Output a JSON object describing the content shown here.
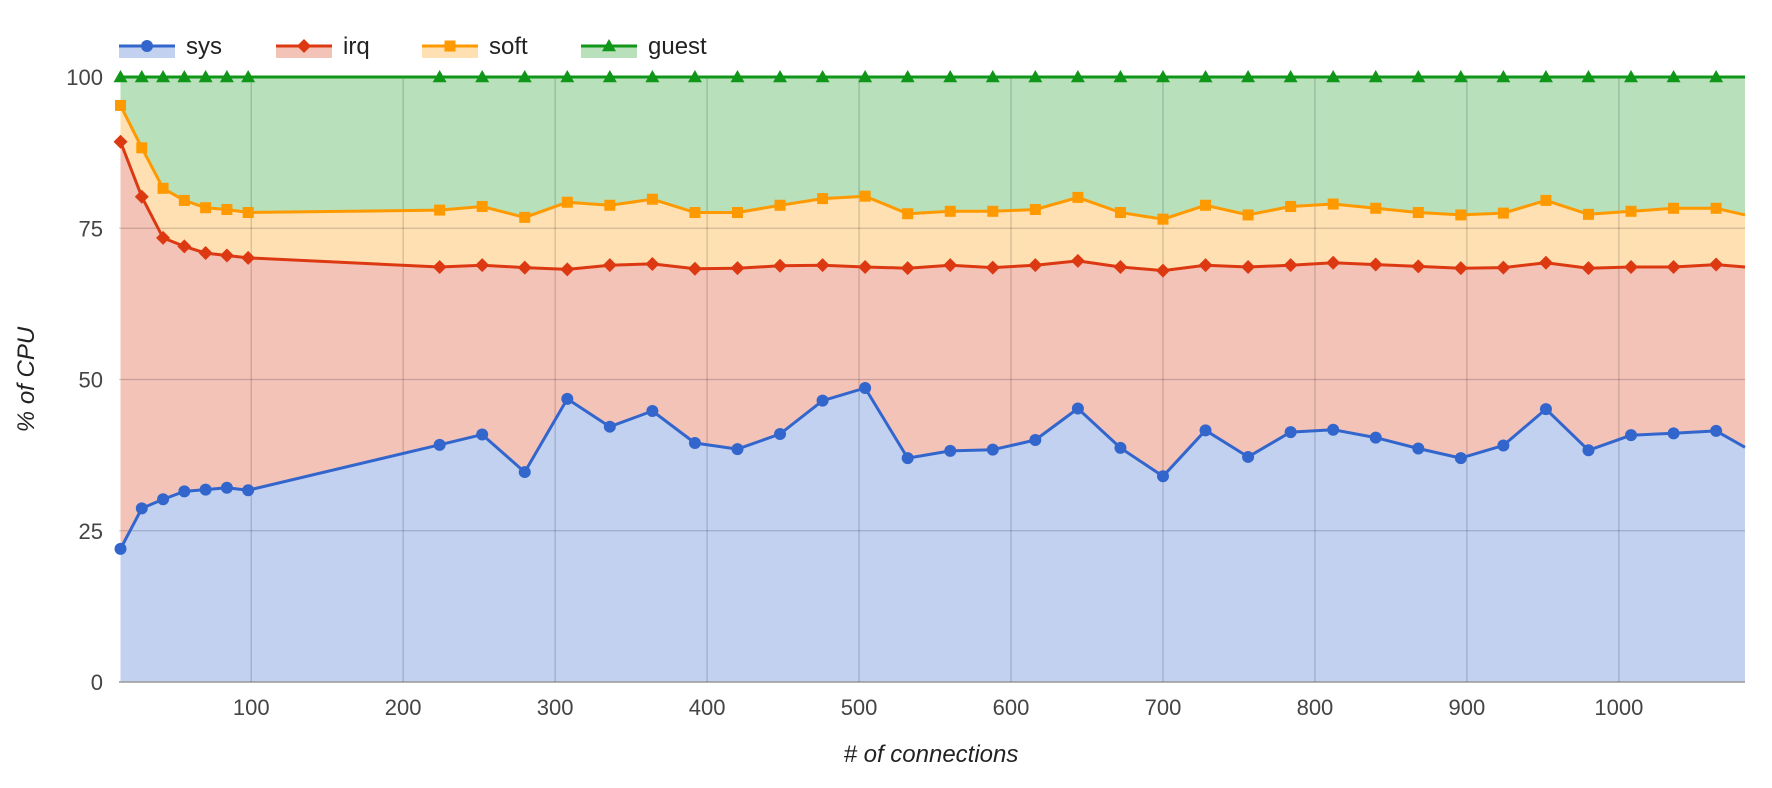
{
  "chart_data": {
    "type": "area",
    "stacked": true,
    "xlabel": "# of connections",
    "ylabel": "% of CPU",
    "xlim": [
      13,
      1083
    ],
    "ylim": [
      0,
      100
    ],
    "xticks": [
      100,
      200,
      300,
      400,
      500,
      600,
      700,
      800,
      900,
      1000
    ],
    "yticks": [
      0,
      25,
      50,
      75,
      100
    ],
    "grid": true,
    "legend_position": "top-left",
    "x": [
      14,
      28,
      42,
      56,
      70,
      84,
      98,
      224,
      252,
      280,
      308,
      336,
      364,
      392,
      420,
      448,
      476,
      504,
      532,
      560,
      588,
      616,
      644,
      672,
      700,
      728,
      756,
      784,
      812,
      840,
      868,
      896,
      924,
      952,
      980,
      1008,
      1036,
      1064,
      1083
    ],
    "series": [
      {
        "name": "sys",
        "color": "#3366cc",
        "fill": "#c2d1f0",
        "marker": "circle",
        "values": [
          22,
          28.7,
          30.2,
          31.5,
          31.8,
          32.1,
          31.7,
          39.2,
          40.9,
          34.7,
          46.8,
          42.2,
          44.8,
          39.5,
          38.5,
          41.0,
          46.5,
          48.6,
          37.0,
          38.2,
          38.4,
          40.0,
          45.2,
          38.7,
          34.0,
          41.6,
          37.2,
          41.3,
          41.7,
          40.4,
          38.6,
          37.0,
          39.1,
          45.1,
          38.3,
          40.8,
          41.1,
          41.5,
          38.8
        ]
      },
      {
        "name": "irq",
        "color": "#dc3912",
        "fill": "#f4c3b8",
        "marker": "diamond",
        "values": [
          89.3,
          80.2,
          73.4,
          72.0,
          70.9,
          70.5,
          70.1,
          68.6,
          68.9,
          68.5,
          68.2,
          68.9,
          69.1,
          68.3,
          68.4,
          68.8,
          68.9,
          68.6,
          68.4,
          68.9,
          68.5,
          68.9,
          69.6,
          68.6,
          68.0,
          68.9,
          68.6,
          68.9,
          69.3,
          69.0,
          68.7,
          68.4,
          68.5,
          69.3,
          68.4,
          68.6,
          68.6,
          69.0,
          68.6
        ]
      },
      {
        "name": "soft",
        "color": "#ff9900",
        "fill": "#ffe0b2",
        "marker": "square",
        "values": [
          95.3,
          88.3,
          81.6,
          79.6,
          78.4,
          78.1,
          77.6,
          78.0,
          78.6,
          76.8,
          79.3,
          78.8,
          79.8,
          77.6,
          77.6,
          78.8,
          79.9,
          80.3,
          77.4,
          77.8,
          77.8,
          78.1,
          80.1,
          77.6,
          76.5,
          78.8,
          77.2,
          78.6,
          79.0,
          78.3,
          77.6,
          77.2,
          77.5,
          79.6,
          77.3,
          77.8,
          78.3,
          78.3,
          77.2
        ]
      },
      {
        "name": "guest",
        "color": "#109618",
        "fill": "#b7e0bb",
        "marker": "triangle",
        "values": [
          100,
          100,
          100,
          100,
          100,
          100,
          100,
          100,
          100,
          100,
          100,
          100,
          100,
          100,
          100,
          100,
          100,
          100,
          100,
          100,
          100,
          100,
          100,
          100,
          100,
          100,
          100,
          100,
          100,
          100,
          100,
          100,
          100,
          100,
          100,
          100,
          100,
          100,
          100
        ]
      }
    ]
  }
}
